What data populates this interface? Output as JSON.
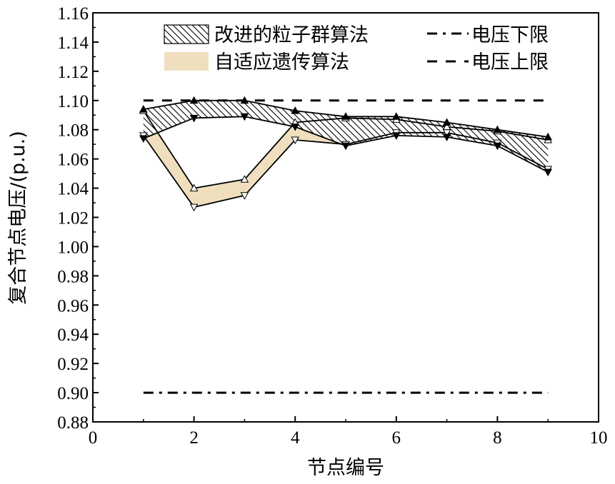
{
  "chart_data": {
    "type": "area",
    "xlabel": "节点编号",
    "ylabel": "复合节点电压/(p.u.)",
    "xlim": [
      0,
      10
    ],
    "ylim": [
      0.88,
      1.16
    ],
    "xticks": [
      0,
      2,
      4,
      6,
      8,
      10
    ],
    "yticks": [
      0.88,
      0.9,
      0.92,
      0.94,
      0.96,
      0.98,
      1.0,
      1.02,
      1.04,
      1.06,
      1.08,
      1.1,
      1.12,
      1.14,
      1.16
    ],
    "x": [
      1,
      2,
      3,
      4,
      5,
      6,
      7,
      8,
      9
    ],
    "series": [
      {
        "name": "改进的粒子群算法",
        "style": "hatched-band",
        "color": "#000000",
        "upper": [
          1.094,
          1.1,
          1.1,
          1.093,
          1.089,
          1.089,
          1.085,
          1.08,
          1.075
        ],
        "lower": [
          1.074,
          1.088,
          1.089,
          1.082,
          1.069,
          1.076,
          1.075,
          1.069,
          1.051
        ]
      },
      {
        "name": "自适应遗传算法",
        "style": "filled-band",
        "color": "#f0dfbe",
        "upper": [
          1.093,
          1.04,
          1.046,
          1.085,
          1.088,
          1.087,
          1.082,
          1.079,
          1.073
        ],
        "lower": [
          1.076,
          1.027,
          1.035,
          1.073,
          1.07,
          1.078,
          1.078,
          1.071,
          1.053
        ]
      },
      {
        "name": "电压下限",
        "style": "dash-dot",
        "color": "#000000",
        "x": [
          1,
          9
        ],
        "values": [
          0.9,
          0.9
        ]
      },
      {
        "name": "电压上限",
        "style": "dashed",
        "color": "#000000",
        "x": [
          1,
          9
        ],
        "values": [
          1.1,
          1.1
        ]
      }
    ],
    "legend": {
      "placement": "top",
      "items": [
        "改进的粒子群算法",
        "自适应遗传算法",
        "电压下限",
        "电压上限"
      ]
    },
    "grid": false
  }
}
